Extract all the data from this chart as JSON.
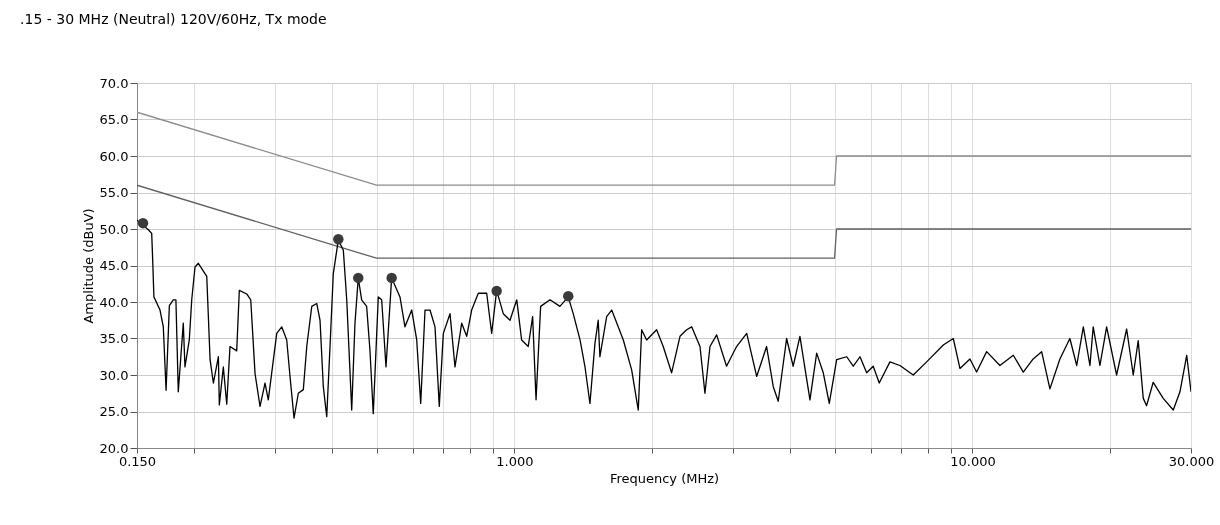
{
  "chart_data": {
    "type": "line",
    "title": ".15 - 30 MHz (Neutral) 120V/60Hz, Tx mode",
    "xlabel": "Frequency (MHz)",
    "ylabel": "Amplitude (dBuV)",
    "log": "x",
    "grid": true,
    "marker": "none",
    "line_style": "solid",
    "xlim": [
      0.15,
      30
    ],
    "ylim": [
      20,
      70
    ],
    "xticks": [
      {
        "value": 0.15,
        "label": "0.150"
      },
      {
        "value": 0.2,
        "label": null
      },
      {
        "value": 0.3,
        "label": null
      },
      {
        "value": 0.4,
        "label": null
      },
      {
        "value": 0.5,
        "label": null
      },
      {
        "value": 0.6,
        "label": null
      },
      {
        "value": 0.7,
        "label": null
      },
      {
        "value": 0.8,
        "label": null
      },
      {
        "value": 0.9,
        "label": null
      },
      {
        "value": 1,
        "label": "1.000"
      },
      {
        "value": 2,
        "label": null
      },
      {
        "value": 3,
        "label": null
      },
      {
        "value": 4,
        "label": null
      },
      {
        "value": 5,
        "label": null
      },
      {
        "value": 6,
        "label": null
      },
      {
        "value": 7,
        "label": null
      },
      {
        "value": 8,
        "label": null
      },
      {
        "value": 9,
        "label": null
      },
      {
        "value": 10,
        "label": "10.000"
      },
      {
        "value": 20,
        "label": null
      },
      {
        "value": 30,
        "label": "30.000"
      }
    ],
    "yticks": [
      {
        "value": 20,
        "label": "20.0"
      },
      {
        "value": 25,
        "label": "25.0"
      },
      {
        "value": 30,
        "label": "30.0"
      },
      {
        "value": 35,
        "label": "35.0"
      },
      {
        "value": 40,
        "label": "40.0"
      },
      {
        "value": 45,
        "label": "45.0"
      },
      {
        "value": 50,
        "label": "50.0"
      },
      {
        "value": 55,
        "label": "55.0"
      },
      {
        "value": 60,
        "label": "60.0"
      },
      {
        "value": 65,
        "label": "65.0"
      },
      {
        "value": 70,
        "label": "70.0"
      }
    ],
    "series": [
      {
        "color": "#8c8c8c",
        "x": [
          0.15,
          0.5,
          5,
          5.05,
          30
        ],
        "values": [
          66,
          56,
          56,
          60,
          60
        ]
      },
      {
        "color": "#606060",
        "x": [
          0.15,
          0.5,
          5,
          5.05,
          30
        ],
        "values": [
          56,
          46,
          46,
          50,
          50
        ]
      },
      {
        "color": "#000000",
        "x": [
          0.15,
          0.1588,
          0.1615,
          0.1623,
          0.1633,
          0.1684,
          0.1712,
          0.1736,
          0.1765,
          0.18,
          0.1824,
          0.1846,
          0.1893,
          0.1909,
          0.1951,
          0.1975,
          0.2008,
          0.2042,
          0.213,
          0.2166,
          0.2202,
          0.2258,
          0.2269,
          0.2315,
          0.2355,
          0.2394,
          0.2476,
          0.2509,
          0.2604,
          0.2657,
          0.2715,
          0.2784,
          0.2855,
          0.2902,
          0.3028,
          0.3105,
          0.3184,
          0.3237,
          0.3303,
          0.3375,
          0.3461,
          0.3521,
          0.3611,
          0.3702,
          0.3764,
          0.3827,
          0.3893,
          0.3958,
          0.4024,
          0.4127,
          0.4232,
          0.4305,
          0.4414,
          0.4487,
          0.4562,
          0.464,
          0.4758,
          0.4838,
          0.4919,
          0.5045,
          0.5132,
          0.5244,
          0.5396,
          0.5626,
          0.5769,
          0.5968,
          0.612,
          0.6244,
          0.6381,
          0.6543,
          0.6709,
          0.6855,
          0.6996,
          0.7235,
          0.7419,
          0.7673,
          0.7868,
          0.8067,
          0.8341,
          0.87,
          0.8921,
          0.9147,
          0.9456,
          0.9781,
          1.012,
          1.037,
          1.072,
          1.096,
          1.115,
          1.141,
          1.196,
          1.257,
          1.311,
          1.344,
          1.391,
          1.426,
          1.462,
          1.499,
          1.524,
          1.537,
          1.59,
          1.631,
          1.729,
          1.803,
          1.864,
          1.896,
          1.944,
          2.044,
          2.113,
          2.204,
          2.299,
          2.377,
          2.438,
          2.542,
          2.606,
          2.673,
          2.764,
          2.905,
          3.055,
          3.215,
          3.38,
          3.553,
          3.674,
          3.767,
          3.929,
          4.061,
          4.201,
          4.418,
          4.57,
          4.724,
          4.869,
          5.053,
          5.315,
          5.494,
          5.682,
          5.875,
          6.073,
          6.259,
          6.605,
          6.945,
          7.426,
          7.943,
          8.637,
          9.081,
          9.391,
          9.874,
          10.21,
          10.74,
          11.48,
          12.28,
          12.91,
          13.57,
          14.16,
          14.76,
          15.52,
          16.32,
          16.89,
          17.46,
          18.05,
          18.35,
          18.98,
          19.63,
          20.64,
          21.71,
          22.44,
          23.01,
          23.6,
          24.0,
          24.81,
          26.09,
          27.44,
          28.38,
          29.36,
          30
        ],
        "values": [
          51.2,
          49.9,
          49.4,
          45.8,
          40.7,
          38.9,
          36.6,
          27.9,
          39.5,
          40.3,
          40.3,
          27.7,
          37.1,
          31.1,
          34.8,
          40.3,
          44.8,
          45.3,
          43.5,
          32.1,
          28.9,
          32.5,
          25.9,
          31.1,
          26.0,
          33.9,
          33.3,
          41.6,
          41.1,
          40.3,
          30.2,
          25.7,
          28.9,
          26.6,
          35.7,
          36.6,
          34.8,
          29.8,
          24.1,
          27.5,
          28.0,
          33.9,
          39.4,
          39.8,
          37.5,
          28.4,
          24.3,
          33.9,
          43.9,
          48.5,
          47.1,
          40.3,
          25.2,
          37.1,
          43.3,
          40.3,
          39.4,
          33.4,
          24.7,
          40.7,
          40.3,
          31.1,
          43.3,
          40.7,
          36.6,
          38.9,
          34.8,
          26.1,
          38.9,
          38.9,
          36.6,
          25.7,
          35.7,
          38.4,
          31.1,
          37.1,
          35.3,
          38.9,
          41.2,
          41.2,
          35.7,
          41.6,
          38.4,
          37.5,
          40.3,
          34.8,
          33.9,
          38.0,
          26.6,
          39.4,
          40.3,
          39.4,
          40.7,
          38.4,
          34.8,
          31.1,
          26.1,
          34.3,
          37.5,
          32.5,
          38.0,
          38.9,
          34.8,
          30.7,
          25.2,
          36.2,
          34.8,
          36.2,
          33.9,
          30.3,
          35.3,
          36.2,
          36.6,
          33.9,
          27.5,
          33.9,
          35.5,
          31.2,
          33.9,
          35.7,
          29.8,
          33.9,
          28.4,
          26.4,
          35.0,
          31.2,
          35.3,
          26.6,
          33.0,
          30.3,
          26.1,
          32.1,
          32.5,
          31.2,
          32.5,
          30.3,
          31.2,
          28.9,
          31.8,
          31.3,
          30.0,
          31.8,
          34.1,
          35.0,
          30.9,
          32.2,
          30.4,
          33.2,
          31.3,
          32.7,
          30.4,
          32.2,
          33.2,
          28.1,
          32.2,
          35.0,
          31.3,
          36.6,
          31.3,
          36.6,
          31.3,
          36.6,
          30.0,
          36.3,
          30.0,
          34.7,
          26.8,
          25.8,
          29.0,
          26.8,
          25.2,
          27.7,
          32.7,
          27.7
        ]
      },
      {
        "type": "scatter",
        "marker": "circle",
        "color": "#3a3a3a",
        "x": [
          0.1546,
          0.4127,
          0.4562,
          0.5396,
          0.9147,
          1.311
        ],
        "values": [
          50.8,
          48.6,
          43.3,
          43.3,
          41.5,
          40.8
        ]
      }
    ]
  }
}
